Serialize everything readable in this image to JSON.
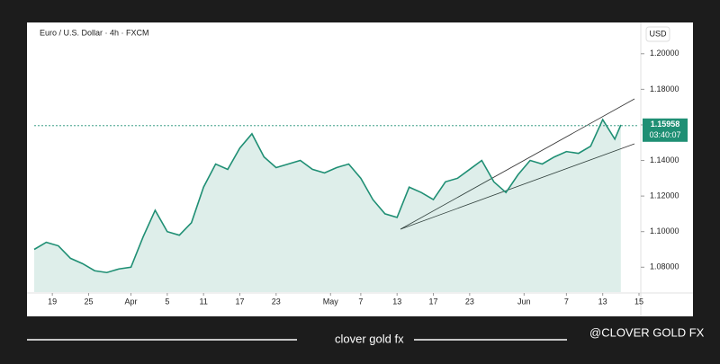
{
  "chart_data": {
    "type": "line",
    "title": "Euro / U.S. Dollar · 4h · FXCM",
    "currency": "USD",
    "x": [
      0,
      2,
      4,
      6,
      8,
      10,
      12,
      14,
      16,
      18,
      20,
      22,
      24,
      26,
      28,
      30,
      32,
      34,
      36,
      38,
      40,
      42,
      44,
      46,
      48,
      50,
      52,
      54,
      56,
      58,
      60,
      62,
      64,
      66,
      68,
      70,
      72,
      74,
      76,
      78,
      80,
      82,
      84,
      86,
      88,
      90,
      92,
      94,
      96,
      97
    ],
    "values": [
      1.09,
      1.094,
      1.092,
      1.085,
      1.082,
      1.078,
      1.077,
      1.079,
      1.08,
      1.097,
      1.112,
      1.1,
      1.098,
      1.105,
      1.125,
      1.138,
      1.135,
      1.147,
      1.155,
      1.142,
      1.136,
      1.138,
      1.14,
      1.135,
      1.133,
      1.136,
      1.138,
      1.13,
      1.118,
      1.11,
      1.108,
      1.125,
      1.122,
      1.118,
      1.128,
      1.13,
      1.135,
      1.14,
      1.128,
      1.122,
      1.132,
      1.14,
      1.138,
      1.142,
      1.145,
      1.144,
      1.148,
      1.163,
      1.152,
      1.16
    ],
    "color": "#1f8f74",
    "last_price": 1.15958,
    "countdown": "03:40:07",
    "xlim": [
      0,
      100
    ],
    "xticks": [
      {
        "value": 3,
        "label": "19"
      },
      {
        "value": 9,
        "label": "25"
      },
      {
        "value": 16,
        "label": "Apr"
      },
      {
        "value": 22,
        "label": "5"
      },
      {
        "value": 28,
        "label": "11"
      },
      {
        "value": 34,
        "label": "17"
      },
      {
        "value": 40,
        "label": "23"
      },
      {
        "value": 49,
        "label": "May"
      },
      {
        "value": 54,
        "label": "7"
      },
      {
        "value": 60,
        "label": "13"
      },
      {
        "value": 66,
        "label": "17"
      },
      {
        "value": 72,
        "label": "23"
      },
      {
        "value": 81,
        "label": "Jun"
      },
      {
        "value": 88,
        "label": "7"
      },
      {
        "value": 94,
        "label": "13"
      },
      {
        "value": 100,
        "label": "15"
      }
    ],
    "ylim": [
      1.066,
      1.21
    ],
    "yticks": [
      {
        "value": 1.08,
        "label": "1.08000"
      },
      {
        "value": 1.1,
        "label": "1.10000"
      },
      {
        "value": 1.12,
        "label": "1.12000"
      },
      {
        "value": 1.14,
        "label": "1.14000"
      },
      {
        "value": 1.16,
        "label": "1.16000"
      },
      {
        "value": 1.18,
        "label": "1.18000"
      },
      {
        "value": 1.2,
        "label": "1.20000"
      }
    ]
  },
  "footer": {
    "brand": "clover gold fx",
    "handle": "@CLOVER GOLD FX"
  }
}
